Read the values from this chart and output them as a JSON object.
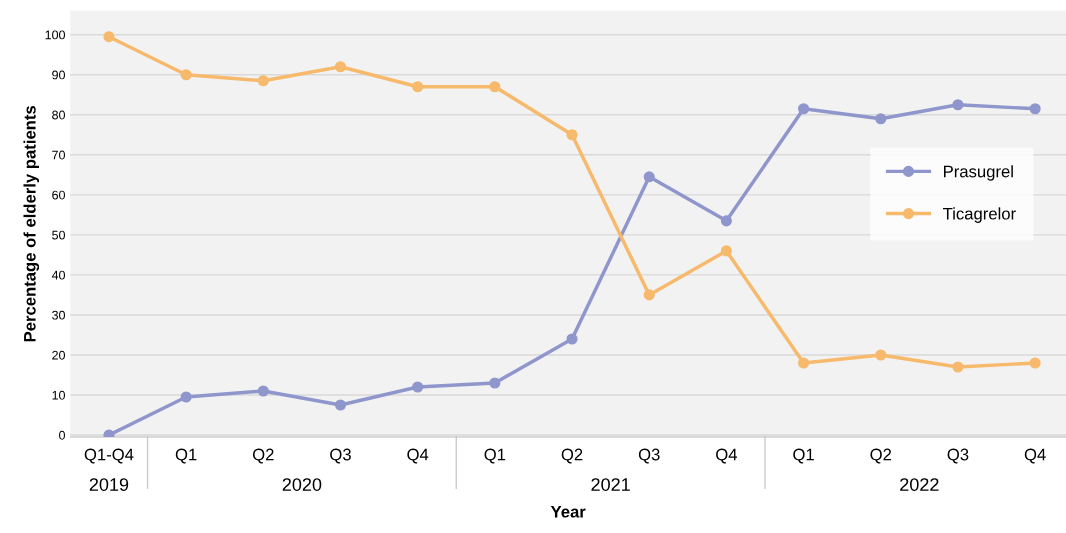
{
  "chart_data": {
    "type": "line",
    "xlabel": "Year",
    "ylabel": "Percentage of elderly patients",
    "categories": [
      "Q1-Q4",
      "Q1",
      "Q2",
      "Q3",
      "Q4",
      "Q1",
      "Q2",
      "Q3",
      "Q4",
      "Q1",
      "Q2",
      "Q3",
      "Q4"
    ],
    "series": [
      {
        "name": "Prasugrel",
        "color": "#8f96cc",
        "values": [
          0,
          9.5,
          11,
          7.5,
          12,
          13,
          24,
          64.5,
          53.5,
          81.5,
          79,
          82.5,
          81.5
        ]
      },
      {
        "name": "Ticagrelor",
        "color": "#f7b96b",
        "values": [
          99.5,
          90,
          88.5,
          92,
          87,
          87,
          75,
          35,
          46,
          18,
          20,
          17,
          18
        ]
      }
    ],
    "annotations": [
      "2019",
      "2020",
      "2021",
      "2022"
    ],
    "ylim": [
      -0.5,
      106
    ],
    "yticks": [
      0,
      10,
      20,
      30,
      40,
      50,
      60,
      70,
      80,
      90,
      100
    ],
    "grid": "y",
    "legend": "right",
    "marker": "circle",
    "line_style": "solid"
  }
}
